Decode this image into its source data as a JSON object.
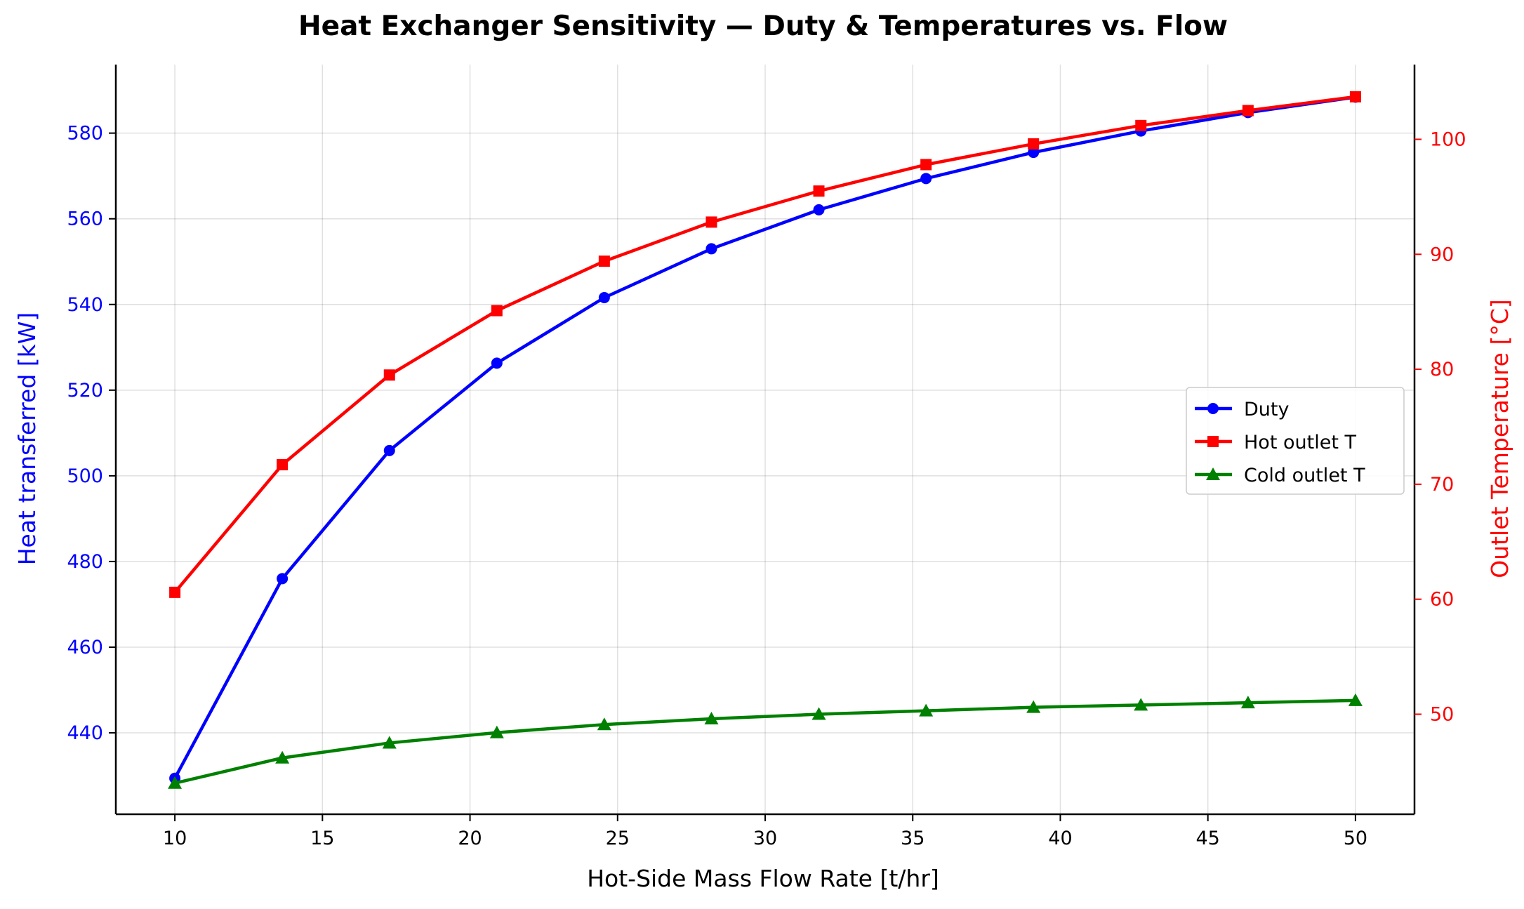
{
  "chart_data": {
    "type": "line",
    "title": "Heat Exchanger Sensitivity — Duty & Temperatures vs. Flow",
    "xlabel": "Hot-Side Mass Flow Rate [t/hr]",
    "ylabel": "Heat transferred [kW]",
    "ylabel_right": "Outlet Temperature [°C]",
    "xlim": [
      8,
      52
    ],
    "ylim": [
      421,
      596
    ],
    "ylim_right": [
      41.3,
      106.5
    ],
    "xticks": [
      10,
      15,
      20,
      25,
      30,
      35,
      40,
      45,
      50
    ],
    "yticks": [
      440,
      460,
      480,
      500,
      520,
      540,
      560,
      580
    ],
    "yticks_right": [
      50,
      60,
      70,
      80,
      90,
      100
    ],
    "grid": true,
    "legend_position": "center-right",
    "x": [
      10,
      13.64,
      17.27,
      20.91,
      24.55,
      28.18,
      31.82,
      35.45,
      39.09,
      42.73,
      46.36,
      50
    ],
    "series": [
      {
        "name": "Duty",
        "axis": "left",
        "color": "#0000ff",
        "marker": "circle",
        "values": [
          429.4,
          476.0,
          505.9,
          526.3,
          541.6,
          553.0,
          562.1,
          569.4,
          575.5,
          580.5,
          584.8,
          588.4
        ]
      },
      {
        "name": "Hot outlet T",
        "axis": "right",
        "color": "#ff0000",
        "marker": "square",
        "values": [
          60.6,
          71.7,
          79.5,
          85.1,
          89.4,
          92.8,
          95.5,
          97.8,
          99.6,
          101.2,
          102.5,
          103.7
        ]
      },
      {
        "name": "Cold outlet T",
        "axis": "right",
        "color": "#008000",
        "marker": "triangle",
        "values": [
          44.0,
          46.2,
          47.5,
          48.4,
          49.1,
          49.6,
          50.0,
          50.3,
          50.6,
          50.8,
          51.0,
          51.2
        ]
      }
    ]
  }
}
